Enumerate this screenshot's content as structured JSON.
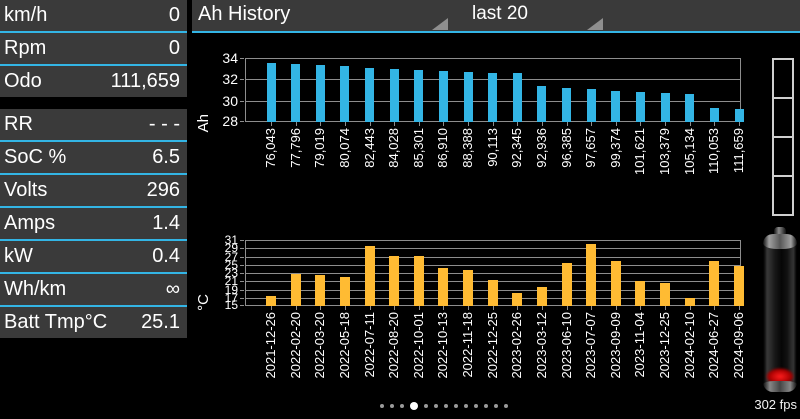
{
  "header": {
    "title": "Ah History",
    "range_selector": "last 20"
  },
  "sidebar": {
    "groups": [
      {
        "rows": [
          {
            "label": "km/h",
            "value": "0"
          },
          {
            "label": "Rpm",
            "value": "0"
          },
          {
            "label": "Odo",
            "value": "111,659"
          }
        ]
      },
      {
        "rows": [
          {
            "label": "RR",
            "value": "- - -"
          },
          {
            "label": "SoC %",
            "value": "6.5"
          },
          {
            "label": "Volts",
            "value": "296"
          },
          {
            "label": "Amps",
            "value": "1.4"
          },
          {
            "label": "kW",
            "value": "0.4"
          },
          {
            "label": "Wh/km",
            "value": "∞"
          },
          {
            "label": "Batt Tmp°C",
            "value": "25.1"
          }
        ]
      }
    ]
  },
  "chart_data": [
    {
      "type": "bar",
      "title": "Ah History",
      "xlabel": "",
      "ylabel": "Ah",
      "categories": [
        "76,043",
        "77,796",
        "79,019",
        "80,074",
        "82,443",
        "84,028",
        "85,301",
        "86,910",
        "88,388",
        "90,113",
        "92,345",
        "92,936",
        "96,385",
        "97,657",
        "99,374",
        "101,621",
        "103,379",
        "105,134",
        "110,053",
        "111,659"
      ],
      "values": [
        33.5,
        33.45,
        33.35,
        33.25,
        33.1,
        33.0,
        32.9,
        32.8,
        32.65,
        32.6,
        32.55,
        31.4,
        31.2,
        31.05,
        30.95,
        30.85,
        30.7,
        30.6,
        29.35,
        29.2
      ],
      "ymin": 28,
      "ymax": 34,
      "ytick_step": 2,
      "grid": true,
      "legend": "none",
      "bar_color": "#33B5E5"
    },
    {
      "type": "bar",
      "title": "",
      "xlabel": "",
      "ylabel": "°C",
      "categories": [
        "2021-12-26",
        "2022-02-20",
        "2022-03-20",
        "2022-05-18",
        "2022-07-11",
        "2022-08-20",
        "2022-10-01",
        "2022-10-13",
        "2022-11-18",
        "2022-12-25",
        "2023-02-26",
        "2023-03-12",
        "2023-06-10",
        "2023-07-07",
        "2023-09-09",
        "2023-11-04",
        "2023-12-25",
        "2024-02-10",
        "2024-06-27",
        "2024-09-06"
      ],
      "values": [
        17.4,
        22.7,
        22.4,
        22.0,
        29.5,
        27.0,
        27.0,
        24.1,
        23.7,
        21.4,
        18.1,
        19.6,
        25.5,
        30.0,
        26.0,
        21.0,
        20.5,
        17.0,
        26.0,
        24.8
      ],
      "ymin": 15,
      "ymax": 31,
      "ytick_step": 2,
      "grid": true,
      "legend": "none",
      "bar_color": "#FFBB33"
    }
  ],
  "footer": {
    "fps": "302 fps",
    "pager": {
      "count": 13,
      "active_index": 3
    }
  },
  "colors": {
    "accent_blue": "#33B5E5",
    "bar_blue": "#33B5E5",
    "bar_orange": "#FFBB33",
    "row_bg": "#3a3a3a"
  }
}
